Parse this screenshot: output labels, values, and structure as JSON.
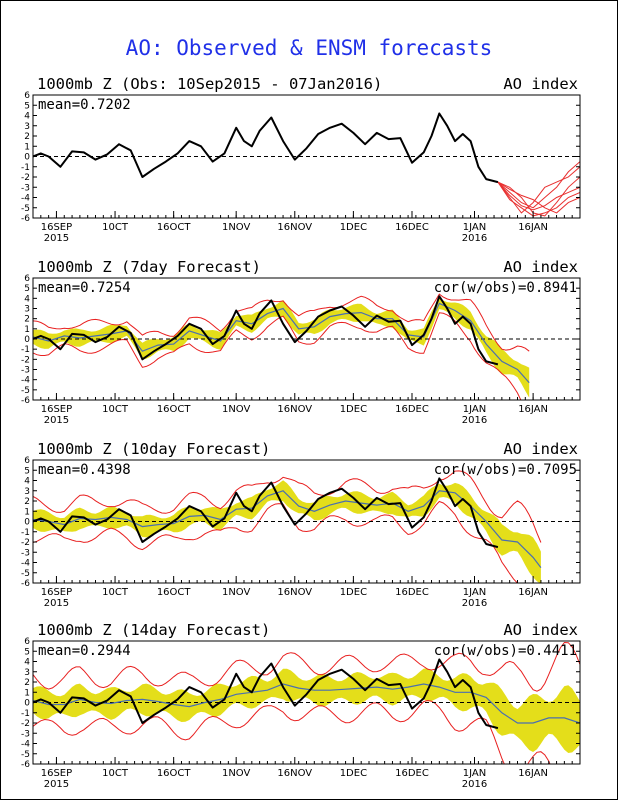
{
  "page": {
    "title": "AO: Observed & ENSM forecasts"
  },
  "chart_data": [
    {
      "type": "line",
      "title": "1000mb Z (Obs: 10Sep2015 - 07Jan2016)",
      "right_label": "AO index",
      "mean_label": "mean=0.7202",
      "cor_label": "",
      "ylim": [
        -6,
        6
      ],
      "yticks": [
        -6,
        -5,
        -4,
        -3,
        -2,
        -1,
        0,
        1,
        2,
        3,
        4,
        5,
        6
      ],
      "xlim": [
        0,
        140
      ],
      "xticks": [
        {
          "label": "16SEP",
          "sub": "2015",
          "day": 6
        },
        {
          "label": "10CT",
          "sub": "",
          "day": 21
        },
        {
          "label": "16OCT",
          "sub": "",
          "day": 36
        },
        {
          "label": "1NOV",
          "sub": "",
          "day": 52
        },
        {
          "label": "16NOV",
          "sub": "",
          "day": 67
        },
        {
          "label": "1DEC",
          "sub": "",
          "day": 82
        },
        {
          "label": "16DEC",
          "sub": "",
          "day": 97
        },
        {
          "label": "1JAN",
          "sub": "2016",
          "day": 113
        },
        {
          "label": "16JAN",
          "sub": "",
          "day": 128
        }
      ],
      "observed": {
        "x": [
          0,
          2,
          4,
          7,
          10,
          13,
          16,
          19,
          22,
          25,
          28,
          31,
          34,
          37,
          40,
          43,
          46,
          49,
          52,
          54,
          56,
          58,
          61,
          64,
          67,
          70,
          73,
          76,
          79,
          82,
          85,
          88,
          91,
          94,
          97,
          100,
          102,
          104,
          106,
          108,
          110,
          112,
          114,
          116,
          119
        ],
        "y": [
          0,
          0.3,
          0,
          -1,
          0.5,
          0.4,
          -0.3,
          0.2,
          1.2,
          0.6,
          -2,
          -1.2,
          -0.5,
          0.3,
          1.5,
          1.0,
          -0.5,
          0.3,
          2.8,
          1.5,
          1.0,
          2.5,
          3.8,
          1.5,
          -0.3,
          0.8,
          2.2,
          2.8,
          3.2,
          2.3,
          1.2,
          2.3,
          1.7,
          1.8,
          -0.6,
          0.4,
          2.0,
          4.2,
          3.0,
          1.5,
          2.2,
          1.5,
          -1.0,
          -2.2,
          -2.5
        ]
      },
      "ensemble": [
        {
          "x": [
            119,
            122,
            125,
            128,
            131,
            134,
            137,
            140
          ],
          "y": [
            -2.5,
            -3.5,
            -4.5,
            -5,
            -4,
            -3,
            -1.5,
            -0.5
          ]
        },
        {
          "x": [
            119,
            122,
            125,
            128,
            131,
            134,
            137,
            140
          ],
          "y": [
            -2.5,
            -4,
            -5.5,
            -4.5,
            -3,
            -2.5,
            -2,
            -1
          ]
        },
        {
          "x": [
            119,
            122,
            125,
            128,
            131,
            134,
            137,
            140
          ],
          "y": [
            -2.5,
            -3,
            -4,
            -5.5,
            -5.8,
            -4.5,
            -3,
            -2
          ]
        },
        {
          "x": [
            119,
            122,
            125,
            128,
            131,
            134,
            137,
            140
          ],
          "y": [
            -2.5,
            -3.8,
            -4.8,
            -5.2,
            -4.8,
            -4,
            -3.5,
            -3
          ]
        },
        {
          "x": [
            119,
            122,
            125,
            128,
            131,
            134,
            137,
            140
          ],
          "y": [
            -2.5,
            -3.2,
            -3.8,
            -4.2,
            -5,
            -5.5,
            -4.5,
            -4
          ]
        },
        {
          "x": [
            119,
            122,
            125,
            128,
            131,
            134,
            137,
            140
          ],
          "y": [
            -2.5,
            -4.2,
            -5,
            -5.8,
            -5.5,
            -5,
            -4,
            -3.5
          ]
        }
      ]
    },
    {
      "type": "line",
      "title": "1000mb Z (7day Forecast)",
      "right_label": "AO index",
      "mean_label": "mean=0.7254",
      "cor_label": "cor(w/obs)=0.8941",
      "ylim": [
        -6,
        6
      ],
      "yticks": [
        -6,
        -5,
        -4,
        -3,
        -2,
        -1,
        0,
        1,
        2,
        3,
        4,
        5,
        6
      ],
      "xlim": [
        0,
        140
      ],
      "xticks": [
        {
          "label": "16SEP",
          "sub": "2015",
          "day": 6
        },
        {
          "label": "10CT",
          "sub": "",
          "day": 21
        },
        {
          "label": "16OCT",
          "sub": "",
          "day": 36
        },
        {
          "label": "1NOV",
          "sub": "",
          "day": 52
        },
        {
          "label": "16NOV",
          "sub": "",
          "day": 67
        },
        {
          "label": "1DEC",
          "sub": "",
          "day": 82
        },
        {
          "label": "16DEC",
          "sub": "",
          "day": 97
        },
        {
          "label": "1JAN",
          "sub": "2016",
          "day": 113
        },
        {
          "label": "16JAN",
          "sub": "",
          "day": 128
        }
      ],
      "observed": {
        "x": [
          0,
          2,
          4,
          7,
          10,
          13,
          16,
          19,
          22,
          25,
          28,
          31,
          34,
          37,
          40,
          43,
          46,
          49,
          52,
          54,
          56,
          58,
          61,
          64,
          67,
          70,
          73,
          76,
          79,
          82,
          85,
          88,
          91,
          94,
          97,
          100,
          102,
          104,
          106,
          108,
          110,
          112,
          114,
          116,
          119
        ],
        "y": [
          0,
          0.3,
          0,
          -1,
          0.5,
          0.4,
          -0.3,
          0.2,
          1.2,
          0.6,
          -2,
          -1.2,
          -0.5,
          0.3,
          1.5,
          1.0,
          -0.5,
          0.3,
          2.8,
          1.5,
          1.0,
          2.5,
          3.8,
          1.5,
          -0.3,
          0.8,
          2.2,
          2.8,
          3.2,
          2.3,
          1.2,
          2.3,
          1.7,
          1.8,
          -0.6,
          0.4,
          2.0,
          4.2,
          3.0,
          1.5,
          2.2,
          1.5,
          -1.0,
          -2.2,
          -2.5
        ]
      },
      "forecast_mean": {
        "x": [
          0,
          4,
          8,
          12,
          16,
          20,
          24,
          28,
          32,
          36,
          40,
          44,
          48,
          52,
          56,
          60,
          64,
          68,
          72,
          76,
          80,
          84,
          88,
          92,
          96,
          100,
          104,
          108,
          112,
          116,
          120,
          124,
          127
        ],
        "y": [
          0.2,
          -0.2,
          0.3,
          0.1,
          0.3,
          0.5,
          0.8,
          -1.2,
          -0.6,
          -0.5,
          0.8,
          0.3,
          -0.2,
          1.8,
          1.5,
          2.5,
          3.0,
          1.0,
          1.2,
          2.2,
          2.5,
          2.6,
          2.0,
          2.0,
          0.4,
          0.2,
          3.5,
          2.8,
          1.8,
          -0.5,
          -2.2,
          -3.0,
          -4.3
        ]
      },
      "band_halfwidth": 0.9,
      "spread_halfwidth": 1.5
    },
    {
      "type": "line",
      "title": "1000mb Z (10day Forecast)",
      "right_label": "AO index",
      "mean_label": "mean=0.4398",
      "cor_label": "cor(w/obs)=0.7095",
      "ylim": [
        -6,
        6
      ],
      "yticks": [
        -6,
        -5,
        -4,
        -3,
        -2,
        -1,
        0,
        1,
        2,
        3,
        4,
        5,
        6
      ],
      "xlim": [
        0,
        140
      ],
      "xticks": [
        {
          "label": "16SEP",
          "sub": "2015",
          "day": 6
        },
        {
          "label": "10CT",
          "sub": "",
          "day": 21
        },
        {
          "label": "16OCT",
          "sub": "",
          "day": 36
        },
        {
          "label": "1NOV",
          "sub": "",
          "day": 52
        },
        {
          "label": "16NOV",
          "sub": "",
          "day": 67
        },
        {
          "label": "1DEC",
          "sub": "",
          "day": 82
        },
        {
          "label": "16DEC",
          "sub": "",
          "day": 97
        },
        {
          "label": "1JAN",
          "sub": "2016",
          "day": 113
        },
        {
          "label": "16JAN",
          "sub": "",
          "day": 128
        }
      ],
      "observed": {
        "x": [
          0,
          2,
          4,
          7,
          10,
          13,
          16,
          19,
          22,
          25,
          28,
          31,
          34,
          37,
          40,
          43,
          46,
          49,
          52,
          54,
          56,
          58,
          61,
          64,
          67,
          70,
          73,
          76,
          79,
          82,
          85,
          88,
          91,
          94,
          97,
          100,
          102,
          104,
          106,
          108,
          110,
          112,
          114,
          116,
          119
        ],
        "y": [
          0,
          0.3,
          0,
          -1,
          0.5,
          0.4,
          -0.3,
          0.2,
          1.2,
          0.6,
          -2,
          -1.2,
          -0.5,
          0.3,
          1.5,
          1.0,
          -0.5,
          0.3,
          2.8,
          1.5,
          1.0,
          2.5,
          3.8,
          1.5,
          -0.3,
          0.8,
          2.2,
          2.8,
          3.2,
          2.3,
          1.2,
          2.3,
          1.7,
          1.8,
          -0.6,
          0.4,
          2.0,
          4.2,
          3.0,
          1.5,
          2.2,
          1.5,
          -1.0,
          -2.2,
          -2.5
        ]
      },
      "forecast_mean": {
        "x": [
          0,
          4,
          8,
          12,
          16,
          20,
          24,
          28,
          32,
          36,
          40,
          44,
          48,
          52,
          56,
          60,
          64,
          68,
          72,
          76,
          80,
          84,
          88,
          92,
          96,
          100,
          104,
          108,
          112,
          116,
          120,
          124,
          128,
          130
        ],
        "y": [
          0.2,
          0,
          -0.3,
          0.3,
          0.2,
          0.4,
          0.2,
          -0.5,
          -0.3,
          -0.2,
          0.5,
          0.6,
          0.2,
          1.2,
          1.3,
          2.5,
          3.0,
          1.5,
          1.0,
          1.6,
          2.0,
          1.8,
          1.6,
          1.8,
          1.0,
          1.5,
          3.0,
          2.8,
          1.5,
          0,
          -1.8,
          -2.0,
          -3.5,
          -4.5
        ]
      },
      "band_halfwidth": 1.1,
      "spread_halfwidth": 2.1
    },
    {
      "type": "line",
      "title": "1000mb Z (14day Forecast)",
      "right_label": "AO index",
      "mean_label": "mean=0.2944",
      "cor_label": "cor(w/obs)=0.4411",
      "ylim": [
        -6,
        6
      ],
      "yticks": [
        -6,
        -5,
        -4,
        -3,
        -2,
        -1,
        0,
        1,
        2,
        3,
        4,
        5,
        6
      ],
      "xlim": [
        0,
        140
      ],
      "xticks": [
        {
          "label": "16SEP",
          "sub": "2015",
          "day": 6
        },
        {
          "label": "10CT",
          "sub": "",
          "day": 21
        },
        {
          "label": "16OCT",
          "sub": "",
          "day": 36
        },
        {
          "label": "1NOV",
          "sub": "",
          "day": 52
        },
        {
          "label": "16NOV",
          "sub": "",
          "day": 67
        },
        {
          "label": "1DEC",
          "sub": "",
          "day": 82
        },
        {
          "label": "16DEC",
          "sub": "",
          "day": 97
        },
        {
          "label": "1JAN",
          "sub": "2016",
          "day": 113
        },
        {
          "label": "16JAN",
          "sub": "",
          "day": 128
        }
      ],
      "observed": {
        "x": [
          0,
          2,
          4,
          7,
          10,
          13,
          16,
          19,
          22,
          25,
          28,
          31,
          34,
          37,
          40,
          43,
          46,
          49,
          52,
          54,
          56,
          58,
          61,
          64,
          67,
          70,
          73,
          76,
          79,
          82,
          85,
          88,
          91,
          94,
          97,
          100,
          102,
          104,
          106,
          108,
          110,
          112,
          114,
          116,
          119
        ],
        "y": [
          0,
          0.3,
          0,
          -1,
          0.5,
          0.4,
          -0.3,
          0.2,
          1.2,
          0.6,
          -2,
          -1.2,
          -0.5,
          0.3,
          1.5,
          1.0,
          -0.5,
          0.3,
          2.8,
          1.5,
          1.0,
          2.5,
          3.8,
          1.5,
          -0.3,
          0.8,
          2.2,
          2.8,
          3.2,
          2.3,
          1.2,
          2.3,
          1.7,
          1.8,
          -0.6,
          0.4,
          2.0,
          4.2,
          3.0,
          1.5,
          2.2,
          1.5,
          -1.0,
          -2.2,
          -2.5
        ]
      },
      "forecast_mean": {
        "x": [
          0,
          4,
          8,
          12,
          16,
          20,
          24,
          28,
          32,
          36,
          40,
          44,
          48,
          52,
          56,
          60,
          64,
          68,
          72,
          76,
          80,
          84,
          88,
          92,
          96,
          100,
          104,
          108,
          112,
          116,
          120,
          124,
          128,
          132,
          136,
          140
        ],
        "y": [
          0.2,
          -0.2,
          -0.2,
          0.3,
          0,
          -0.1,
          0.2,
          0.3,
          0.1,
          -0.2,
          -0.4,
          0,
          0.3,
          0.8,
          1.0,
          1.2,
          1.8,
          1.4,
          1.2,
          1.2,
          1.3,
          1.4,
          1.5,
          1.3,
          1.5,
          1.8,
          1.5,
          1.0,
          1.0,
          0.5,
          -1.0,
          -2.0,
          -2.0,
          -1.5,
          -1.5,
          -2.0
        ]
      },
      "band_halfwidth": 1.6,
      "spread_halfwidth": 3.0
    }
  ]
}
